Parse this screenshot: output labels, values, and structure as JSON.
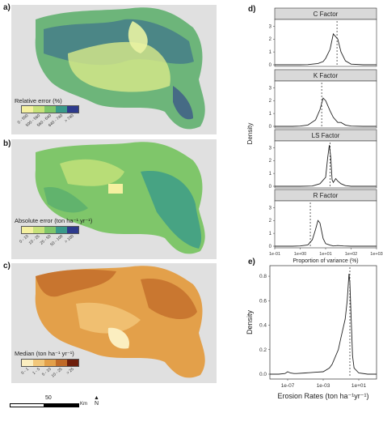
{
  "map_panels": [
    {
      "letter": "a)",
      "legend_title": "Relative error (%)",
      "breaks": [
        "0 - 500",
        "500 - 560",
        "560 - 640",
        "640 - 740",
        "> 740"
      ],
      "colors": [
        "#f4f0a0",
        "#c7e27a",
        "#7fc66a",
        "#3a9a8a",
        "#2d3a8c"
      ]
    },
    {
      "letter": "b)",
      "legend_title": "Absolute error (ton ha⁻¹ yr⁻¹)",
      "breaks": [
        "0 - 10",
        "10 - 25",
        "25 - 50",
        "50 - 100",
        "> 100"
      ],
      "colors": [
        "#f4f0a0",
        "#c7e27a",
        "#7fc66a",
        "#3a9a8a",
        "#2d3a8c"
      ]
    },
    {
      "letter": "c)",
      "legend_title": "Median (ton ha⁻¹ yr⁻¹)",
      "breaks": [
        "0 - 1",
        "1 - 5",
        "5 - 10",
        "10 - 25",
        "> 25"
      ],
      "colors": [
        "#fbeec0",
        "#f2c77a",
        "#e3a04a",
        "#c06a28",
        "#6e1f0c"
      ]
    }
  ],
  "scale_bar": {
    "label": "50",
    "unit": "Km",
    "north": "N"
  },
  "chart_data": [
    {
      "panel": "d)",
      "type": "line",
      "facets": [
        {
          "name": "C Factor",
          "x": [
            0.1,
            0.5,
            1,
            2,
            3,
            5,
            8,
            10,
            15,
            20,
            30,
            40,
            60,
            100,
            300,
            1000
          ],
          "y": [
            0,
            0,
            0,
            0.01,
            0.05,
            0.1,
            0.25,
            0.5,
            1.2,
            2.4,
            2.0,
            1.0,
            0.3,
            0.05,
            0,
            0
          ],
          "mean_x": 28
        },
        {
          "name": "K Factor",
          "x": [
            0.1,
            0.5,
            1,
            2,
            4,
            6,
            8,
            10,
            15,
            20,
            30,
            40,
            60,
            100,
            300,
            1000
          ],
          "y": [
            0,
            0,
            0.02,
            0.1,
            0.5,
            1.3,
            2.2,
            2.0,
            1.2,
            0.7,
            0.3,
            0.3,
            0.1,
            0.02,
            0,
            0
          ],
          "mean_x": 7
        },
        {
          "name": "LS Factor",
          "x": [
            0.1,
            0.5,
            1,
            3,
            6,
            10,
            12,
            14,
            16,
            18,
            20,
            25,
            30,
            40,
            60,
            100,
            1000
          ],
          "y": [
            0,
            0,
            0,
            0.02,
            0.2,
            0.7,
            2.2,
            3.2,
            2.2,
            0.5,
            0.3,
            0.6,
            0.4,
            0.2,
            0.05,
            0,
            0
          ],
          "mean_x": 15
        },
        {
          "name": "R Factor",
          "x": [
            0.1,
            0.5,
            1,
            2,
            3,
            4,
            5,
            6,
            8,
            10,
            15,
            20,
            30,
            50,
            100,
            200,
            1000
          ],
          "y": [
            0,
            0,
            0.02,
            0.1,
            0.5,
            1.3,
            2.0,
            1.8,
            0.6,
            0.2,
            0.08,
            0.02,
            0.05,
            0.02,
            0,
            0,
            0
          ],
          "mean_x": 2.5
        }
      ],
      "xlabel": "Proportion of variance (%)",
      "ylabel": "Density",
      "x_scale": "log",
      "xlim": [
        0.1,
        1000
      ],
      "ylim": [
        0,
        3.4
      ],
      "yticks": [
        0,
        1,
        2,
        3
      ],
      "xtick_labels": [
        "1e-01",
        "1e+00",
        "1e+01",
        "1e+02",
        "1e+03"
      ]
    },
    {
      "panel": "e)",
      "type": "line",
      "series": [
        {
          "x": [
            1e-09,
            1e-08,
            5e-08,
            1e-07,
            2e-07,
            5e-07,
            1e-06,
            1e-05,
            0.0001,
            0.001,
            0.005,
            0.01,
            0.05,
            0.1,
            0.3,
            0.5,
            0.8,
            1,
            1.5,
            2,
            3,
            10,
            100,
            1000
          ],
          "y": [
            0,
            0,
            0.005,
            0.02,
            0.01,
            0.005,
            0.005,
            0.01,
            0.015,
            0.02,
            0.05,
            0.08,
            0.2,
            0.3,
            0.45,
            0.6,
            0.82,
            0.75,
            0.4,
            0.15,
            0.05,
            0.01,
            0,
            0
          ]
        }
      ],
      "mean_x": 1,
      "xlabel": "Erosion Rates (ton ha⁻¹yr⁻¹)",
      "ylabel": "Density",
      "x_scale": "log",
      "xlim": [
        1e-09,
        1000
      ],
      "ylim": [
        0,
        0.86
      ],
      "yticks_labels": [
        "0.0",
        "0.2",
        "0.4",
        "0.6",
        "0.8"
      ],
      "xtick_labels": [
        "1e-07",
        "1e-03",
        "1e+01"
      ]
    }
  ]
}
